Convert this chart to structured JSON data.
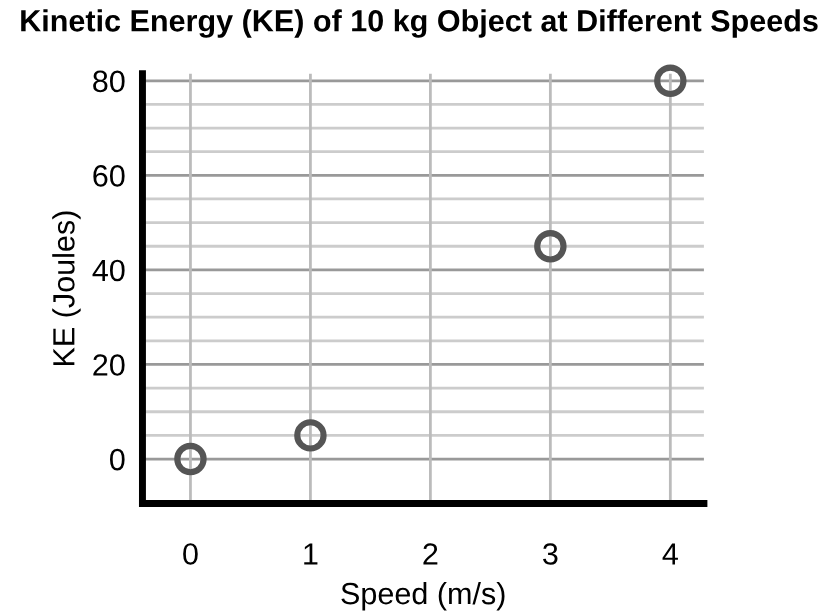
{
  "chart_data": {
    "type": "scatter",
    "title": "Kinetic Energy (KE) of 10 kg Object at Different Speeds",
    "xlabel": "Speed (m/s)",
    "ylabel": "KE (Joules)",
    "x": [
      0,
      1,
      3,
      4
    ],
    "values": [
      0,
      5,
      45,
      80
    ],
    "color": "#555555",
    "marker": "circle",
    "xlim": [
      -0.4,
      4.28
    ],
    "ylim": [
      -9.4,
      81.5
    ],
    "xticks": [
      0,
      1,
      2,
      3,
      4
    ],
    "yticks": [
      0,
      {
        "value": 5,
        "label": null
      },
      {
        "value": 10,
        "label": null
      },
      {
        "value": 15,
        "label": null
      },
      20,
      {
        "value": 25,
        "label": null
      },
      {
        "value": 30,
        "label": null
      },
      {
        "value": 35,
        "label": null
      },
      40,
      {
        "value": 45,
        "label": null
      },
      {
        "value": 50,
        "label": null
      },
      {
        "value": 55,
        "label": null
      },
      60,
      {
        "value": 65,
        "label": null
      },
      {
        "value": 70,
        "label": null
      },
      {
        "value": 75,
        "label": null
      },
      80
    ],
    "grid": true
  }
}
